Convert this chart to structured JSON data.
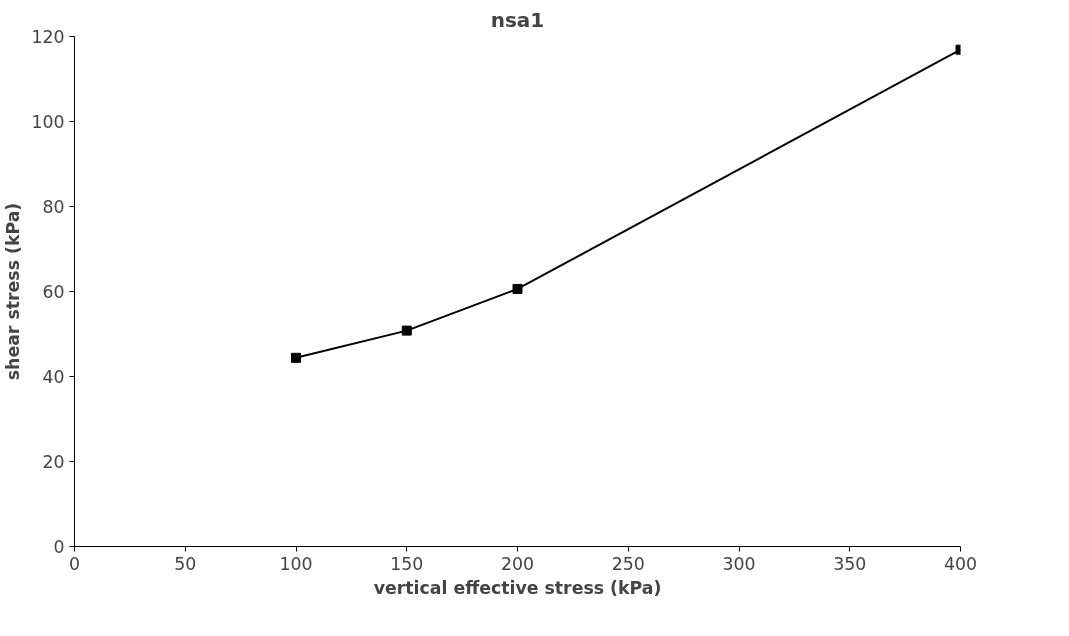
{
  "chart_data": {
    "type": "line",
    "title": "nsa1",
    "xlabel": "vertical effective stress (kPa)",
    "ylabel": "shear stress (kPa)",
    "x": [
      100,
      150,
      200,
      400
    ],
    "series": [
      {
        "color": "#000000",
        "values": [
          44.4,
          50.8,
          60.6,
          116.9
        ]
      }
    ],
    "xlim": [
      0,
      400
    ],
    "xticks": [
      0,
      50,
      100,
      150,
      200,
      250,
      300,
      350,
      400
    ],
    "ylim": [
      0,
      120
    ],
    "yticks": [
      0,
      20,
      40,
      60,
      80,
      100,
      120
    ],
    "grid": false,
    "marker": "square",
    "line_style": "solid"
  }
}
